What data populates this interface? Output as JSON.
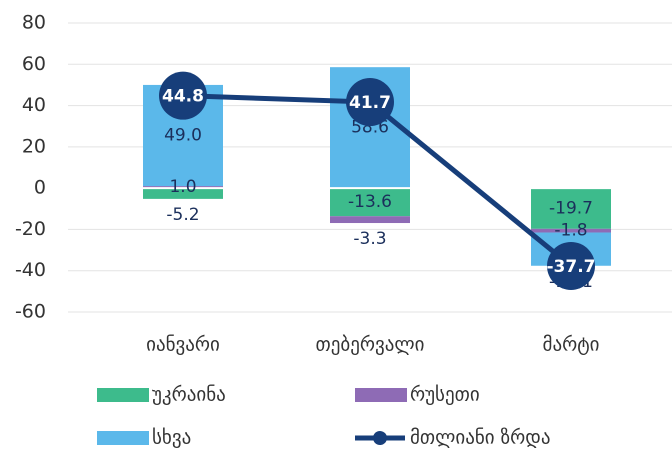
{
  "chart_data": {
    "type": "bar",
    "categories": [
      "იანვარი",
      "თებერვალი",
      "მარტი"
    ],
    "series": [
      {
        "name": "უკრაინა",
        "color": "#3dbb8c",
        "values": [
          -5.2,
          -13.6,
          -19.7
        ],
        "value_labels": [
          "-5.2",
          "-13.6",
          "-19.7"
        ]
      },
      {
        "name": "რუსეთი",
        "color": "#8e6bb5",
        "values": [
          1.0,
          -3.3,
          -1.8
        ],
        "value_labels": [
          "1.0",
          "-3.3",
          "-1.8"
        ]
      },
      {
        "name": "სხვა",
        "color": "#5bb8ea",
        "values": [
          49.0,
          58.6,
          -16.1
        ],
        "value_labels": [
          "49.0",
          "58.6",
          "-16.1"
        ]
      },
      {
        "name": "მთლიანი ზრდა",
        "type": "line",
        "color": "#173e7a",
        "values": [
          44.8,
          41.7,
          -37.7
        ]
      }
    ],
    "ylim": [
      -60,
      80
    ],
    "yticks": [
      -60,
      -40,
      -20,
      0,
      20,
      40,
      60,
      80
    ],
    "grid": true,
    "legend": "bottom"
  }
}
